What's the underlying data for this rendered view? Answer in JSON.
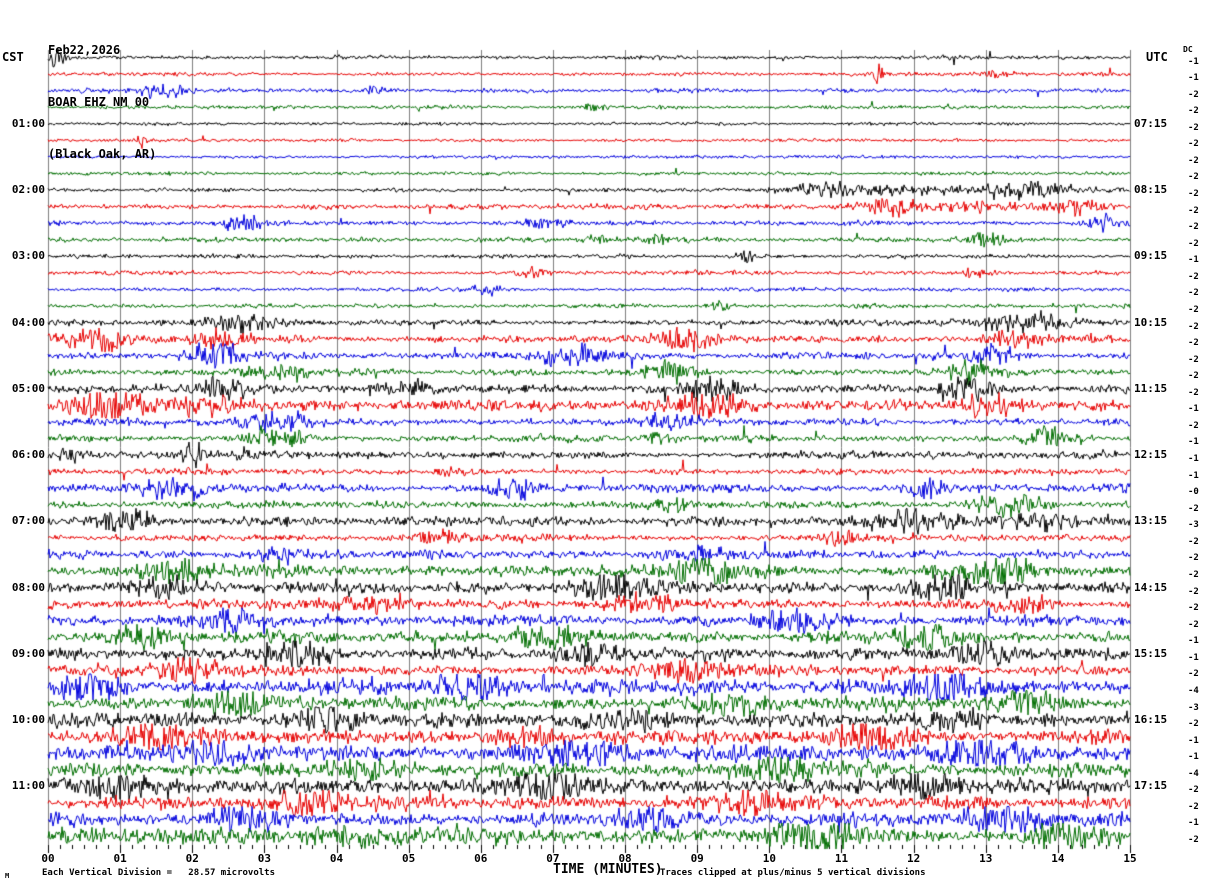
{
  "header": {
    "date": "Feb22,2026",
    "station": "BOAR EHZ NM 00",
    "location": "(Black Oak, AR)",
    "tz_left": "CST",
    "tz_right": "UTC",
    "dc_label": "DC"
  },
  "footer": {
    "corner_mark": "M",
    "scale_note": "Each Vertical Division =   28.57 microvolts",
    "axis_title": "TIME (MINUTES)",
    "clip_note": "Traces clipped at plus/minus 5 vertical divisions"
  },
  "chart_data": {
    "type": "line",
    "title": "BOAR EHZ NM 00 (Black Oak, AR) helicorder, Feb22,2026",
    "xlabel": "TIME (MINUTES)",
    "x_range_minutes": [
      0,
      15
    ],
    "x_ticks": [
      "00",
      "01",
      "02",
      "03",
      "04",
      "05",
      "06",
      "07",
      "08",
      "09",
      "10",
      "11",
      "12",
      "13",
      "14",
      "15"
    ],
    "minor_ticks_per_minute": 6,
    "minutes_per_line": 15,
    "lines_per_hour": 4,
    "left_axis_note": "line start time, CST",
    "right_axis_note": "line end time, UTC",
    "grid": true,
    "grid_color": "#7d7d7d",
    "colors_cycle": [
      "#000000",
      "#e60000",
      "#0000dd",
      "#006e00"
    ],
    "clip_divisions": 5,
    "microvolts_per_division": 28.57,
    "rows": [
      {
        "cst": "",
        "utc": "",
        "dc": "-1",
        "amp": 1.2,
        "bursts": [
          {
            "m": 0.1,
            "w": 0.2,
            "g": 5
          }
        ]
      },
      {
        "cst": "",
        "utc": "",
        "dc": "-1",
        "amp": 1.2,
        "bursts": [
          {
            "m": 11.5,
            "w": 0.15,
            "g": 5
          },
          {
            "m": 13.2,
            "w": 0.3,
            "g": 2
          }
        ]
      },
      {
        "cst": "",
        "utc": "",
        "dc": "-2",
        "amp": 1.3,
        "bursts": [
          {
            "m": 1.6,
            "w": 0.5,
            "g": 5
          },
          {
            "m": 4.6,
            "w": 0.3,
            "g": 2
          }
        ]
      },
      {
        "cst": "",
        "utc": "",
        "dc": "-2",
        "amp": 1.2,
        "bursts": [
          {
            "m": 7.5,
            "w": 0.3,
            "g": 2
          }
        ]
      },
      {
        "cst": "01:00",
        "utc": "07:15",
        "dc": "-2",
        "amp": 1.0,
        "bursts": []
      },
      {
        "cst": "",
        "utc": "",
        "dc": "-2",
        "amp": 1.0,
        "bursts": [
          {
            "m": 1.3,
            "w": 0.1,
            "g": 4
          }
        ]
      },
      {
        "cst": "",
        "utc": "",
        "dc": "-2",
        "amp": 1.0,
        "bursts": []
      },
      {
        "cst": "",
        "utc": "",
        "dc": "-2",
        "amp": 1.1,
        "bursts": []
      },
      {
        "cst": "02:00",
        "utc": "08:15",
        "dc": "-2",
        "amp": 1.4,
        "bursts": [
          {
            "m": 11.3,
            "w": 1.8,
            "g": 2.6
          },
          {
            "m": 13.6,
            "w": 1.2,
            "g": 2.6
          }
        ]
      },
      {
        "cst": "",
        "utc": "",
        "dc": "-2",
        "amp": 1.6,
        "bursts": [
          {
            "m": 11.6,
            "w": 1.0,
            "g": 3.2
          },
          {
            "m": 12.9,
            "w": 0.8,
            "g": 3.0
          },
          {
            "m": 14.2,
            "w": 0.8,
            "g": 2.6
          }
        ]
      },
      {
        "cst": "",
        "utc": "",
        "dc": "-2",
        "amp": 1.5,
        "bursts": [
          {
            "m": 2.7,
            "w": 0.5,
            "g": 4.5
          },
          {
            "m": 6.9,
            "w": 0.4,
            "g": 2.4
          },
          {
            "m": 14.6,
            "w": 0.3,
            "g": 3
          }
        ]
      },
      {
        "cst": "",
        "utc": "",
        "dc": "-2",
        "amp": 1.5,
        "bursts": [
          {
            "m": 7.7,
            "w": 0.5,
            "g": 3
          },
          {
            "m": 8.4,
            "w": 0.3,
            "g": 2.5
          },
          {
            "m": 13.0,
            "w": 0.4,
            "g": 3.4
          }
        ]
      },
      {
        "cst": "03:00",
        "utc": "09:15",
        "dc": "-1",
        "amp": 1.3,
        "bursts": [
          {
            "m": 9.7,
            "w": 0.25,
            "g": 3
          }
        ]
      },
      {
        "cst": "",
        "utc": "",
        "dc": "-2",
        "amp": 1.3,
        "bursts": [
          {
            "m": 12.9,
            "w": 0.5,
            "g": 3
          },
          {
            "m": 6.7,
            "w": 0.3,
            "g": 2.2
          }
        ]
      },
      {
        "cst": "",
        "utc": "",
        "dc": "-2",
        "amp": 1.2,
        "bursts": [
          {
            "m": 6.1,
            "w": 0.3,
            "g": 2.4
          }
        ]
      },
      {
        "cst": "",
        "utc": "",
        "dc": "-2",
        "amp": 1.3,
        "bursts": [
          {
            "m": 9.3,
            "w": 0.3,
            "g": 2.2
          }
        ]
      },
      {
        "cst": "04:00",
        "utc": "10:15",
        "dc": "-2",
        "amp": 2.0,
        "bursts": [
          {
            "m": 2.6,
            "w": 0.7,
            "g": 2.0
          },
          {
            "m": 13.4,
            "w": 1.0,
            "g": 2.4
          }
        ]
      },
      {
        "cst": "",
        "utc": "",
        "dc": "-2",
        "amp": 2.3,
        "bursts": [
          {
            "m": 0.7,
            "w": 0.7,
            "g": 2.4
          },
          {
            "m": 2.3,
            "w": 0.6,
            "g": 2.4
          },
          {
            "m": 8.9,
            "w": 0.6,
            "g": 2.3
          },
          {
            "m": 13.4,
            "w": 0.7,
            "g": 2.4
          }
        ]
      },
      {
        "cst": "",
        "utc": "",
        "dc": "-2",
        "amp": 2.3,
        "bursts": [
          {
            "m": 2.3,
            "w": 0.6,
            "g": 2.8
          },
          {
            "m": 7.2,
            "w": 0.7,
            "g": 2.3
          },
          {
            "m": 13.2,
            "w": 0.6,
            "g": 2.3
          }
        ]
      },
      {
        "cst": "",
        "utc": "",
        "dc": "-2",
        "amp": 2.1,
        "bursts": [
          {
            "m": 3.2,
            "w": 0.7,
            "g": 2.3
          },
          {
            "m": 8.6,
            "w": 0.6,
            "g": 2.2
          },
          {
            "m": 12.8,
            "w": 0.7,
            "g": 2.2
          }
        ]
      },
      {
        "cst": "05:00",
        "utc": "11:15",
        "dc": "-2",
        "amp": 2.6,
        "bursts": [
          {
            "m": 2.3,
            "w": 0.7,
            "g": 2.3
          },
          {
            "m": 5.1,
            "w": 0.6,
            "g": 2.0
          },
          {
            "m": 9.3,
            "w": 0.7,
            "g": 2.3
          },
          {
            "m": 12.8,
            "w": 0.7,
            "g": 2.2
          }
        ]
      },
      {
        "cst": "",
        "utc": "",
        "dc": "-1",
        "amp": 3.0,
        "bursts": [
          {
            "m": 0.9,
            "w": 0.8,
            "g": 2.6
          },
          {
            "m": 2.2,
            "w": 0.7,
            "g": 2.6
          },
          {
            "m": 9.1,
            "w": 0.7,
            "g": 2.3
          },
          {
            "m": 13.1,
            "w": 0.7,
            "g": 2.3
          }
        ]
      },
      {
        "cst": "",
        "utc": "",
        "dc": "-2",
        "amp": 2.3,
        "bursts": [
          {
            "m": 3.3,
            "w": 0.8,
            "g": 2.3
          },
          {
            "m": 8.6,
            "w": 0.7,
            "g": 2.1
          }
        ]
      },
      {
        "cst": "",
        "utc": "",
        "dc": "-1",
        "amp": 2.1,
        "bursts": [
          {
            "m": 3.2,
            "w": 0.6,
            "g": 2.3
          },
          {
            "m": 8.5,
            "w": 0.5,
            "g": 2.1
          },
          {
            "m": 13.9,
            "w": 0.5,
            "g": 2.3
          }
        ]
      },
      {
        "cst": "06:00",
        "utc": "12:15",
        "dc": "-1",
        "amp": 2.3,
        "bursts": [
          {
            "m": 2.0,
            "w": 0.2,
            "g": 5
          },
          {
            "m": 0.3,
            "w": 0.4,
            "g": 2.4
          }
        ]
      },
      {
        "cst": "",
        "utc": "",
        "dc": "-1",
        "amp": 1.9,
        "bursts": [
          {
            "m": 5.6,
            "w": 0.4,
            "g": 2.0
          }
        ]
      },
      {
        "cst": "",
        "utc": "",
        "dc": "-0",
        "amp": 2.6,
        "bursts": [
          {
            "m": 1.8,
            "w": 0.6,
            "g": 2.8
          },
          {
            "m": 6.4,
            "w": 0.5,
            "g": 2.3
          },
          {
            "m": 12.2,
            "w": 0.5,
            "g": 2.3
          }
        ]
      },
      {
        "cst": "",
        "utc": "",
        "dc": "-2",
        "amp": 2.3,
        "bursts": [
          {
            "m": 8.7,
            "w": 0.5,
            "g": 2.1
          },
          {
            "m": 13.3,
            "w": 0.8,
            "g": 2.6
          }
        ]
      },
      {
        "cst": "07:00",
        "utc": "13:15",
        "dc": "-3",
        "amp": 2.9,
        "bursts": [
          {
            "m": 1.1,
            "w": 0.7,
            "g": 2.3
          },
          {
            "m": 11.9,
            "w": 0.9,
            "g": 2.6
          },
          {
            "m": 13.8,
            "w": 0.7,
            "g": 2.6
          }
        ]
      },
      {
        "cst": "",
        "utc": "",
        "dc": "-2",
        "amp": 2.1,
        "bursts": [
          {
            "m": 5.4,
            "w": 0.5,
            "g": 2.0
          },
          {
            "m": 11.0,
            "w": 0.5,
            "g": 2.0
          }
        ]
      },
      {
        "cst": "",
        "utc": "",
        "dc": "-2",
        "amp": 2.6,
        "bursts": [
          {
            "m": 3.1,
            "w": 0.6,
            "g": 2.2
          },
          {
            "m": 9.1,
            "w": 0.7,
            "g": 2.4
          }
        ]
      },
      {
        "cst": "",
        "utc": "",
        "dc": "-2",
        "amp": 3.6,
        "bursts": [
          {
            "m": 1.6,
            "w": 0.9,
            "g": 2.2
          },
          {
            "m": 9.1,
            "w": 0.9,
            "g": 2.2
          },
          {
            "m": 13.1,
            "w": 0.9,
            "g": 2.2
          }
        ]
      },
      {
        "cst": "08:00",
        "utc": "14:15",
        "dc": "-2",
        "amp": 3.6,
        "bursts": [
          {
            "m": 1.7,
            "w": 0.8,
            "g": 2.0
          },
          {
            "m": 7.8,
            "w": 0.9,
            "g": 2.2
          },
          {
            "m": 12.4,
            "w": 0.8,
            "g": 2.0
          }
        ]
      },
      {
        "cst": "",
        "utc": "",
        "dc": "-2",
        "amp": 3.3,
        "bursts": [
          {
            "m": 4.4,
            "w": 0.8,
            "g": 2.0
          },
          {
            "m": 8.2,
            "w": 0.8,
            "g": 2.2
          },
          {
            "m": 13.5,
            "w": 0.6,
            "g": 2.0
          }
        ]
      },
      {
        "cst": "",
        "utc": "",
        "dc": "-2",
        "amp": 3.3,
        "bursts": [
          {
            "m": 2.8,
            "w": 0.7,
            "g": 2.0
          },
          {
            "m": 10.3,
            "w": 0.8,
            "g": 2.0
          }
        ]
      },
      {
        "cst": "",
        "utc": "",
        "dc": "-1",
        "amp": 3.6,
        "bursts": [
          {
            "m": 1.3,
            "w": 0.8,
            "g": 2.0
          },
          {
            "m": 6.9,
            "w": 0.8,
            "g": 2.0
          },
          {
            "m": 12.1,
            "w": 0.8,
            "g": 2.0
          }
        ]
      },
      {
        "cst": "09:00",
        "utc": "15:15",
        "dc": "-1",
        "amp": 3.6,
        "bursts": [
          {
            "m": 3.4,
            "w": 0.8,
            "g": 2.0
          },
          {
            "m": 7.5,
            "w": 0.7,
            "g": 1.9
          },
          {
            "m": 12.9,
            "w": 0.8,
            "g": 2.0
          }
        ]
      },
      {
        "cst": "",
        "utc": "",
        "dc": "-2",
        "amp": 3.3,
        "bursts": [
          {
            "m": 1.9,
            "w": 0.7,
            "g": 1.9
          },
          {
            "m": 8.8,
            "w": 0.8,
            "g": 2.0
          }
        ]
      },
      {
        "cst": "",
        "utc": "",
        "dc": "-4",
        "amp": 4.4,
        "bursts": [
          {
            "m": 0.6,
            "w": 0.7,
            "g": 1.9
          },
          {
            "m": 5.9,
            "w": 0.8,
            "g": 1.9
          },
          {
            "m": 12.3,
            "w": 0.8,
            "g": 1.9
          }
        ]
      },
      {
        "cst": "",
        "utc": "",
        "dc": "-3",
        "amp": 4.1,
        "bursts": [
          {
            "m": 2.5,
            "w": 0.8,
            "g": 1.8
          },
          {
            "m": 9.4,
            "w": 0.8,
            "g": 1.9
          },
          {
            "m": 13.6,
            "w": 0.6,
            "g": 1.8
          }
        ]
      },
      {
        "cst": "10:00",
        "utc": "16:15",
        "dc": "-2",
        "amp": 4.2,
        "bursts": [
          {
            "m": 3.9,
            "w": 0.8,
            "g": 1.8
          },
          {
            "m": 8.0,
            "w": 0.8,
            "g": 1.8
          },
          {
            "m": 12.6,
            "w": 0.7,
            "g": 1.8
          }
        ]
      },
      {
        "cst": "",
        "utc": "",
        "dc": "-1",
        "amp": 4.4,
        "bursts": [
          {
            "m": 1.4,
            "w": 0.8,
            "g": 1.8
          },
          {
            "m": 6.6,
            "w": 0.8,
            "g": 1.8
          },
          {
            "m": 11.5,
            "w": 0.8,
            "g": 1.8
          }
        ]
      },
      {
        "cst": "",
        "utc": "",
        "dc": "-1",
        "amp": 4.7,
        "bursts": [
          {
            "m": 2.2,
            "w": 0.8,
            "g": 1.8
          },
          {
            "m": 7.4,
            "w": 0.9,
            "g": 1.8
          },
          {
            "m": 13.0,
            "w": 0.8,
            "g": 1.8
          }
        ]
      },
      {
        "cst": "",
        "utc": "",
        "dc": "-4",
        "amp": 4.4,
        "bursts": [
          {
            "m": 4.6,
            "w": 0.9,
            "g": 1.7
          },
          {
            "m": 10.1,
            "w": 0.8,
            "g": 1.8
          }
        ]
      },
      {
        "cst": "11:00",
        "utc": "17:15",
        "dc": "-2",
        "amp": 4.4,
        "bursts": [
          {
            "m": 1.0,
            "w": 0.8,
            "g": 1.8
          },
          {
            "m": 7.0,
            "w": 0.8,
            "g": 1.7
          },
          {
            "m": 12.2,
            "w": 0.8,
            "g": 1.8
          }
        ]
      },
      {
        "cst": "",
        "utc": "",
        "dc": "-2",
        "amp": 4.2,
        "bursts": [
          {
            "m": 3.6,
            "w": 0.8,
            "g": 1.7
          },
          {
            "m": 9.8,
            "w": 0.8,
            "g": 1.7
          }
        ]
      },
      {
        "cst": "",
        "utc": "",
        "dc": "-1",
        "amp": 4.4,
        "bursts": [
          {
            "m": 2.9,
            "w": 0.8,
            "g": 1.7
          },
          {
            "m": 8.3,
            "w": 0.8,
            "g": 1.7
          },
          {
            "m": 13.4,
            "w": 0.7,
            "g": 1.7
          }
        ]
      },
      {
        "cst": "",
        "utc": "",
        "dc": "-2",
        "amp": 4.7,
        "bursts": [
          {
            "m": 4.2,
            "w": 0.9,
            "g": 1.7
          },
          {
            "m": 10.6,
            "w": 0.9,
            "g": 1.7
          },
          {
            "m": 14.0,
            "w": 0.6,
            "g": 1.7
          }
        ]
      }
    ]
  }
}
